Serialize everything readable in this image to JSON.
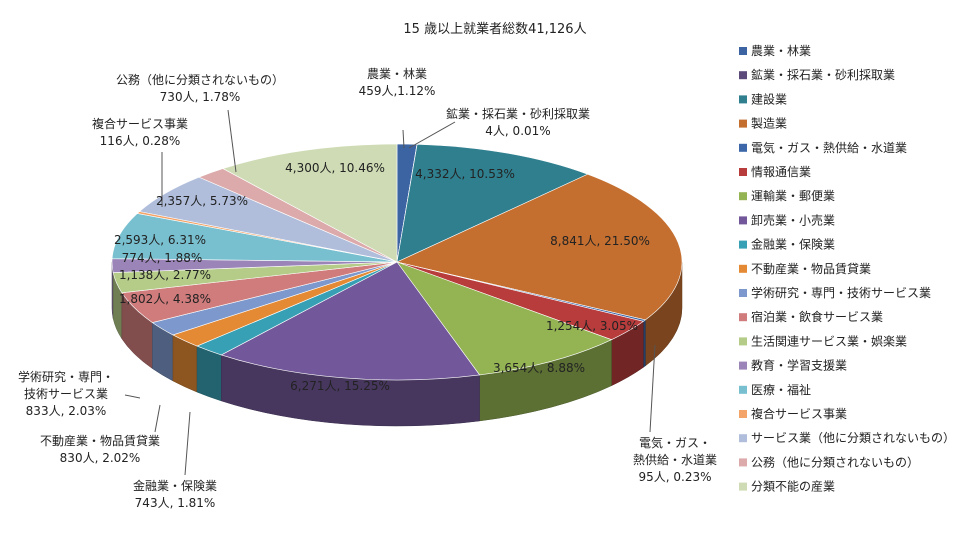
{
  "chart_data": {
    "type": "pie",
    "title": "15 歳以上就業者総数41,126人",
    "legend_position": "right",
    "style": "3d-exploded",
    "slices": [
      {
        "label": "農業・林業",
        "value": 459,
        "percent": 1.12,
        "data_label": "459人,1.12%",
        "color": "#3d64a2"
      },
      {
        "label": "鉱業・採石業・砂利採取業",
        "value": 4,
        "percent": 0.01,
        "data_label": "4人, 0.01%",
        "color": "#5c4a7b"
      },
      {
        "label": "建設業",
        "value": 4332,
        "percent": 10.53,
        "data_label": "4,332人, 10.53%",
        "color": "#2f7f8f"
      },
      {
        "label": "製造業",
        "value": 8841,
        "percent": 21.5,
        "data_label": "8,841人, 21.50%",
        "color": "#c46f30"
      },
      {
        "label": "電気・ガス・熱供給・水道業",
        "value": 95,
        "percent": 0.23,
        "data_label": "95人, 0.23%",
        "color": "#3c67a8"
      },
      {
        "label": "情報通信業",
        "value": 1254,
        "percent": 3.05,
        "data_label": "1,254人, 3.05%",
        "color": "#b83c3c"
      },
      {
        "label": "運輸業・郵便業",
        "value": 3654,
        "percent": 8.88,
        "data_label": "3,654人, 8.88%",
        "color": "#94b454"
      },
      {
        "label": "卸売業・小売業",
        "value": 6271,
        "percent": 15.25,
        "data_label": "6,271人, 15.25%",
        "color": "#72589a"
      },
      {
        "label": "金融業・保険業",
        "value": 743,
        "percent": 1.81,
        "data_label": "743人, 1.81%",
        "color": "#38a0b4"
      },
      {
        "label": "不動産業・物品賃貸業",
        "value": 830,
        "percent": 2.02,
        "data_label": "830人, 2.02%",
        "color": "#e48a34"
      },
      {
        "label": "学術研究・専門・技術サービス業",
        "value": 833,
        "percent": 2.03,
        "data_label": "833人, 2.03%",
        "color": "#7c98cc"
      },
      {
        "label": "宿泊業・飲食サービス業",
        "value": 1802,
        "percent": 4.38,
        "data_label": "1,802人, 4.38%",
        "color": "#d07c7c"
      },
      {
        "label": "生活関連サービス業・娯楽業",
        "value": 1138,
        "percent": 2.77,
        "data_label": "1,138人, 2.77%",
        "color": "#b4cc88"
      },
      {
        "label": "教育・学習支援業",
        "value": 774,
        "percent": 1.88,
        "data_label": "774人, 1.88%",
        "color": "#9a84b8"
      },
      {
        "label": "医療・福祉",
        "value": 2593,
        "percent": 6.31,
        "data_label": "2,593人, 6.31%",
        "color": "#78c0d0"
      },
      {
        "label": "複合サービス事業",
        "value": 116,
        "percent": 0.28,
        "data_label": "116人, 0.28%",
        "color": "#f4a468"
      },
      {
        "label": "サービス業（他に分類されないもの）",
        "value": 2357,
        "percent": 5.73,
        "data_label": "2,357人, 5.73%",
        "color": "#b0bedc"
      },
      {
        "label": "公務（他に分類されないもの）",
        "value": 730,
        "percent": 1.78,
        "data_label": "730人, 1.78%",
        "color": "#dcaaaa"
      },
      {
        "label": "分類不能の産業",
        "value": 4300,
        "percent": 10.46,
        "data_label": "4,300人, 10.46%",
        "color": "#cedbb4"
      }
    ]
  }
}
